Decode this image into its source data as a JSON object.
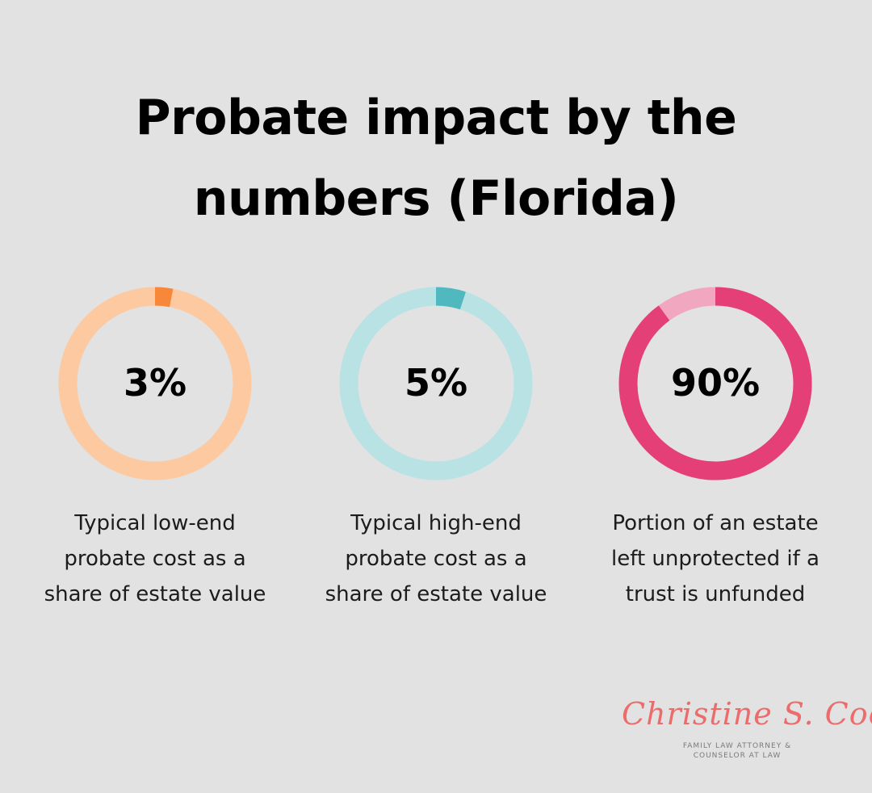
{
  "title": {
    "line1": "Probate impact by the",
    "line2": "numbers (Florida)"
  },
  "chart_data": [
    {
      "type": "pie",
      "value": 3,
      "label": "3%",
      "caption": "Typical low-end probate cost as a share of estate value",
      "caption_lines": [
        "Typical low-end",
        "probate cost as a",
        "share of estate value"
      ],
      "colors": {
        "filled": "#f7883a",
        "remainder": "#fdc9a1"
      }
    },
    {
      "type": "pie",
      "value": 5,
      "label": "5%",
      "caption": "Typical high-end probate cost as a share of estate value",
      "caption_lines": [
        "Typical high-end",
        "probate cost as a",
        "share of estate value"
      ],
      "colors": {
        "filled": "#4fb9bf",
        "remainder": "#b8e2e4"
      }
    },
    {
      "type": "pie",
      "value": 90,
      "label": "90%",
      "caption": "Portion of an estate left unprotected if a trust is unfunded",
      "caption_lines": [
        "Portion of an estate",
        "left unprotected if a",
        "trust is unfunded"
      ],
      "colors": {
        "filled": "#e43f76",
        "remainder": "#f1a7bf"
      }
    }
  ],
  "logo": {
    "name": "Christine S. Cook",
    "subtitle_line1": "FAMILY LAW ATTORNEY &",
    "subtitle_line2": "COUNSELOR AT LAW",
    "color": "#ec6b6b"
  }
}
